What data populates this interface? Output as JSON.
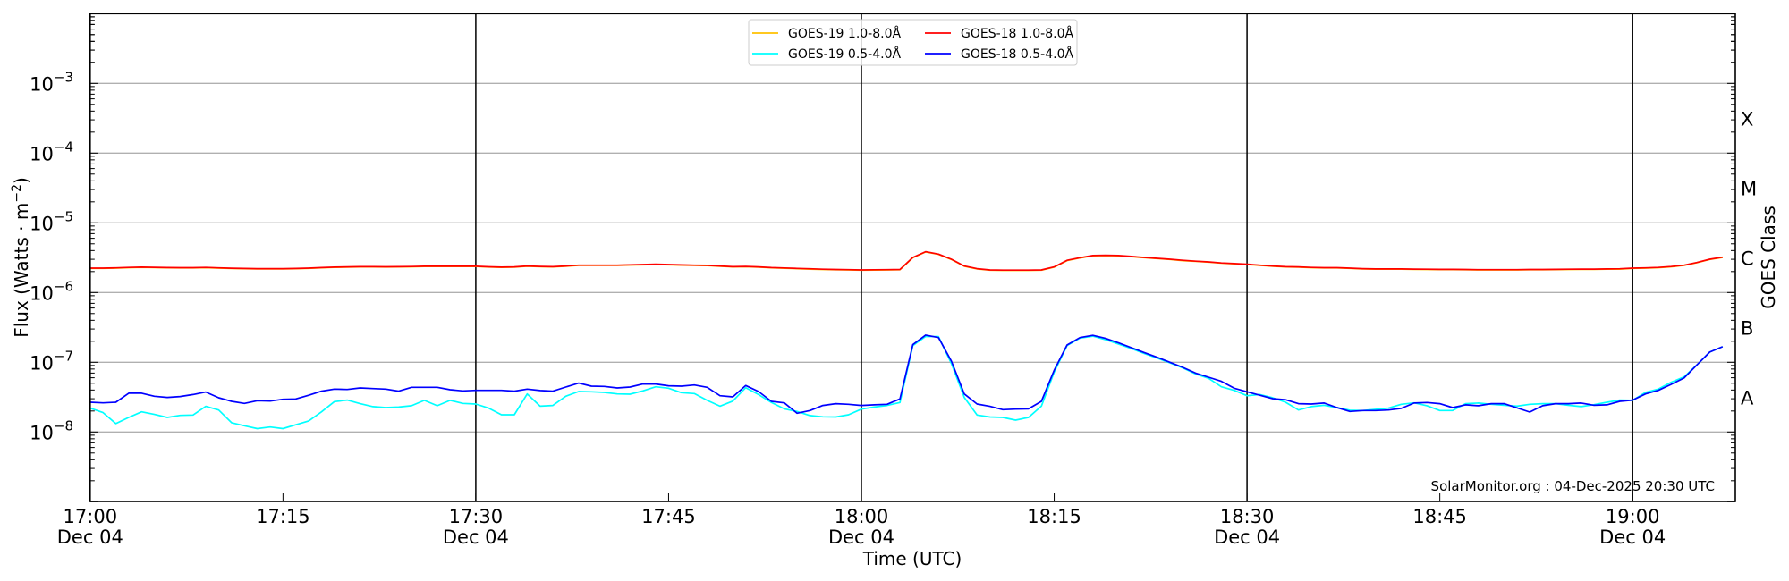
{
  "chart_data": {
    "type": "line",
    "title": "",
    "xlabel": "Time (UTC)",
    "ylabel": {
      "text": "Flux (Watts · m",
      "exp": "−2",
      "close": ")"
    },
    "ylabel_right": "GOES Class",
    "yscale": "log",
    "ylim": [
      1e-09,
      0.01
    ],
    "x_start": "17:00",
    "x_unit": "minutes after 17:00 UTC, 04 Dec",
    "x_cadence_minutes": 1,
    "xlim_minutes": [
      0,
      128
    ],
    "grid": "horizontal at each decade",
    "legend_placement": "top-center",
    "x_ticks": [
      {
        "minute": 0,
        "time": "17:00",
        "date": "Dec 04"
      },
      {
        "minute": 15,
        "time": "17:15",
        "date": ""
      },
      {
        "minute": 30,
        "time": "17:30",
        "date": "Dec 04"
      },
      {
        "minute": 45,
        "time": "17:45",
        "date": ""
      },
      {
        "minute": 60,
        "time": "18:00",
        "date": "Dec 04"
      },
      {
        "minute": 75,
        "time": "18:15",
        "date": ""
      },
      {
        "minute": 90,
        "time": "18:30",
        "date": "Dec 04"
      },
      {
        "minute": 105,
        "time": "18:45",
        "date": ""
      },
      {
        "minute": 120,
        "time": "19:00",
        "date": "Dec 04"
      }
    ],
    "vertical_marker_minutes": [
      30,
      60,
      90,
      120
    ],
    "y_ticks": [
      {
        "value": 0.001,
        "base": "10",
        "exp": "−3"
      },
      {
        "value": 0.0001,
        "base": "10",
        "exp": "−4"
      },
      {
        "value": 1e-05,
        "base": "10",
        "exp": "−5"
      },
      {
        "value": 1e-06,
        "base": "10",
        "exp": "−6"
      },
      {
        "value": 1e-07,
        "base": "10",
        "exp": "−7"
      },
      {
        "value": 1e-08,
        "base": "10",
        "exp": "−8"
      }
    ],
    "goes_classes": [
      {
        "label": "A",
        "value": 3.162e-08
      },
      {
        "label": "B",
        "value": 3.162e-07
      },
      {
        "label": "C",
        "value": 3.162e-06
      },
      {
        "label": "M",
        "value": 3.162e-05
      },
      {
        "label": "X",
        "value": 0.0003162
      }
    ],
    "series": [
      {
        "name": "GOES-19 1.0-8.0Å",
        "color": "#ffc000",
        "scale": 1e-06,
        "values": [
          2.22,
          2.22,
          2.24,
          2.27,
          2.29,
          2.28,
          2.26,
          2.25,
          2.25,
          2.27,
          2.24,
          2.21,
          2.19,
          2.18,
          2.18,
          2.18,
          2.19,
          2.22,
          2.26,
          2.29,
          2.31,
          2.33,
          2.33,
          2.32,
          2.33,
          2.34,
          2.36,
          2.36,
          2.36,
          2.36,
          2.36,
          2.32,
          2.29,
          2.31,
          2.38,
          2.35,
          2.33,
          2.38,
          2.45,
          2.45,
          2.45,
          2.45,
          2.48,
          2.5,
          2.53,
          2.5,
          2.47,
          2.45,
          2.43,
          2.38,
          2.33,
          2.35,
          2.31,
          2.26,
          2.23,
          2.2,
          2.17,
          2.14,
          2.12,
          2.11,
          2.09,
          2.1,
          2.11,
          2.12,
          3.16,
          3.82,
          3.53,
          2.98,
          2.38,
          2.18,
          2.09,
          2.08,
          2.08,
          2.08,
          2.09,
          2.31,
          2.87,
          3.13,
          3.36,
          3.39,
          3.36,
          3.27,
          3.16,
          3.07,
          2.98,
          2.87,
          2.8,
          2.73,
          2.64,
          2.58,
          2.53,
          2.45,
          2.38,
          2.33,
          2.31,
          2.27,
          2.25,
          2.25,
          2.22,
          2.18,
          2.16,
          2.16,
          2.16,
          2.15,
          2.14,
          2.13,
          2.13,
          2.12,
          2.11,
          2.11,
          2.11,
          2.11,
          2.12,
          2.12,
          2.13,
          2.14,
          2.15,
          2.15,
          2.16,
          2.17,
          2.22,
          2.24,
          2.27,
          2.34,
          2.45,
          2.68,
          2.98,
          3.19
        ]
      },
      {
        "name": "GOES-18 1.0-8.0Å",
        "color": "#ff0000",
        "scale": 1e-06,
        "values": [
          2.24,
          2.24,
          2.26,
          2.29,
          2.31,
          2.3,
          2.28,
          2.27,
          2.27,
          2.29,
          2.26,
          2.23,
          2.21,
          2.2,
          2.2,
          2.2,
          2.21,
          2.24,
          2.28,
          2.31,
          2.33,
          2.35,
          2.35,
          2.34,
          2.35,
          2.36,
          2.38,
          2.38,
          2.38,
          2.38,
          2.38,
          2.34,
          2.31,
          2.33,
          2.4,
          2.37,
          2.35,
          2.4,
          2.47,
          2.47,
          2.47,
          2.47,
          2.5,
          2.52,
          2.55,
          2.52,
          2.49,
          2.47,
          2.45,
          2.4,
          2.35,
          2.37,
          2.33,
          2.28,
          2.25,
          2.22,
          2.19,
          2.16,
          2.14,
          2.13,
          2.11,
          2.12,
          2.13,
          2.14,
          3.19,
          3.85,
          3.56,
          3.01,
          2.4,
          2.2,
          2.11,
          2.1,
          2.1,
          2.1,
          2.11,
          2.33,
          2.9,
          3.16,
          3.39,
          3.42,
          3.39,
          3.3,
          3.19,
          3.1,
          3.01,
          2.9,
          2.82,
          2.75,
          2.66,
          2.6,
          2.55,
          2.47,
          2.4,
          2.35,
          2.33,
          2.29,
          2.27,
          2.27,
          2.24,
          2.2,
          2.18,
          2.18,
          2.18,
          2.17,
          2.16,
          2.15,
          2.15,
          2.14,
          2.13,
          2.13,
          2.13,
          2.13,
          2.14,
          2.14,
          2.15,
          2.16,
          2.17,
          2.17,
          2.18,
          2.19,
          2.24,
          2.26,
          2.29,
          2.36,
          2.47,
          2.7,
          3.01,
          3.22
        ]
      },
      {
        "name": "GOES-19 0.5-4.0Å",
        "color": "#00ffff",
        "scale": 1e-08,
        "values": [
          2.2,
          1.9,
          1.32,
          1.62,
          1.95,
          1.79,
          1.62,
          1.73,
          1.75,
          2.33,
          2.07,
          1.36,
          1.23,
          1.12,
          1.18,
          1.12,
          1.27,
          1.44,
          1.95,
          2.73,
          2.87,
          2.55,
          2.31,
          2.24,
          2.28,
          2.38,
          2.84,
          2.38,
          2.84,
          2.57,
          2.52,
          2.2,
          1.77,
          1.77,
          3.52,
          2.35,
          2.4,
          3.26,
          3.81,
          3.77,
          3.7,
          3.52,
          3.49,
          3.89,
          4.46,
          4.25,
          3.66,
          3.56,
          2.84,
          2.35,
          2.78,
          4.33,
          3.45,
          2.65,
          2.15,
          1.97,
          1.72,
          1.65,
          1.64,
          1.77,
          2.13,
          2.28,
          2.4,
          2.65,
          17.3,
          23.5,
          23.3,
          9.6,
          3.13,
          1.75,
          1.64,
          1.62,
          1.48,
          1.62,
          2.35,
          7.2,
          17.3,
          22.2,
          23.7,
          21.1,
          18.2,
          15.7,
          13.4,
          11.5,
          9.8,
          8.3,
          6.8,
          5.9,
          4.46,
          3.96,
          3.32,
          3.45,
          3.1,
          2.67,
          2.07,
          2.31,
          2.42,
          2.24,
          2.05,
          2.03,
          2.11,
          2.2,
          2.5,
          2.62,
          2.38,
          2.03,
          2.03,
          2.55,
          2.6,
          2.5,
          2.42,
          2.35,
          2.5,
          2.55,
          2.55,
          2.42,
          2.31,
          2.47,
          2.67,
          2.87,
          2.84,
          3.7,
          4.12,
          5.17,
          6.17,
          9.16,
          14.0,
          16.7
        ]
      },
      {
        "name": "GOES-18 0.5-4.0Å",
        "color": "#0000ff",
        "scale": 1e-08,
        "values": [
          2.67,
          2.62,
          2.67,
          3.6,
          3.6,
          3.26,
          3.13,
          3.23,
          3.45,
          3.74,
          3.1,
          2.75,
          2.57,
          2.81,
          2.78,
          2.95,
          2.98,
          3.36,
          3.85,
          4.12,
          4.08,
          4.29,
          4.2,
          4.12,
          3.85,
          4.38,
          4.38,
          4.38,
          4.04,
          3.89,
          3.96,
          3.96,
          3.96,
          3.85,
          4.12,
          3.93,
          3.85,
          4.42,
          5.02,
          4.55,
          4.5,
          4.29,
          4.42,
          4.88,
          4.88,
          4.6,
          4.55,
          4.73,
          4.38,
          3.32,
          3.19,
          4.64,
          3.81,
          2.75,
          2.62,
          1.86,
          2.03,
          2.4,
          2.55,
          2.5,
          2.4,
          2.45,
          2.5,
          2.98,
          17.9,
          24.5,
          22.6,
          10.4,
          3.52,
          2.52,
          2.33,
          2.09,
          2.13,
          2.15,
          2.75,
          7.67,
          17.7,
          22.6,
          24.3,
          22.0,
          19.0,
          16.2,
          13.8,
          11.8,
          10.0,
          8.45,
          7.0,
          6.1,
          5.33,
          4.25,
          3.78,
          3.36,
          3.01,
          2.9,
          2.55,
          2.52,
          2.6,
          2.24,
          1.97,
          2.03,
          2.03,
          2.07,
          2.18,
          2.6,
          2.65,
          2.55,
          2.24,
          2.45,
          2.38,
          2.55,
          2.55,
          2.22,
          1.93,
          2.38,
          2.55,
          2.55,
          2.6,
          2.42,
          2.45,
          2.75,
          2.87,
          3.52,
          3.96,
          4.83,
          5.94,
          9.16,
          14.0,
          16.7
        ]
      }
    ],
    "legend_order": [
      0,
      2,
      1,
      3
    ],
    "annotation": "SolarMonitor.org : 04-Dec-2025 20:30 UTC"
  }
}
